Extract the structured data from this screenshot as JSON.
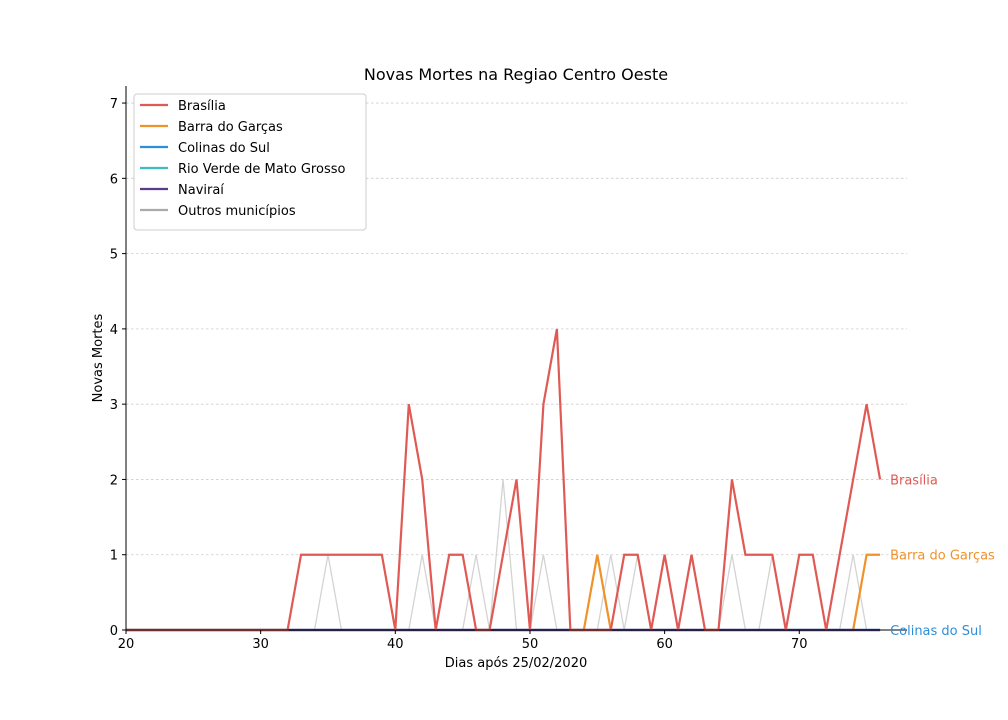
{
  "chart_data": {
    "type": "line",
    "title": "Novas Mortes na Regiao Centro Oeste",
    "xlabel": "Dias após 25/02/2020",
    "ylabel": "Novas Mortes",
    "xlim": [
      20,
      78
    ],
    "ylim": [
      0,
      7.2
    ],
    "xticks": [
      20,
      30,
      40,
      50,
      60,
      70
    ],
    "yticks": [
      0,
      1,
      2,
      3,
      4,
      5,
      6,
      7
    ],
    "grid": "horizontal-dotted",
    "legend_position": "top-left",
    "series": [
      {
        "name": "Brasília",
        "color": "#e05a55",
        "end_label": "Brasília",
        "x": [
          20,
          32,
          33,
          34,
          35,
          36,
          37,
          38,
          39,
          40,
          41,
          42,
          43,
          44,
          45,
          46,
          47,
          48,
          49,
          50,
          51,
          52,
          53,
          54,
          55,
          56,
          57,
          58,
          59,
          60,
          61,
          62,
          63,
          64,
          65,
          66,
          67,
          68,
          69,
          70,
          71,
          72,
          73,
          74,
          75,
          76
        ],
        "y": [
          0,
          0,
          1,
          1,
          1,
          1,
          1,
          1,
          1,
          0,
          3,
          2,
          0,
          1,
          1,
          0,
          0,
          1,
          2,
          0,
          3,
          4,
          0,
          0,
          0,
          0,
          1,
          1,
          0,
          1,
          0,
          1,
          0,
          0,
          2,
          1,
          1,
          1,
          0,
          1,
          1,
          0,
          1,
          2,
          3,
          2
        ]
      },
      {
        "name": "Barra do Garças",
        "color": "#f0922b",
        "end_label": "Barra do Garças",
        "x": [
          20,
          54,
          55,
          56,
          74,
          75,
          76
        ],
        "y": [
          0,
          0,
          1,
          0,
          0,
          1,
          1
        ]
      },
      {
        "name": "Colinas do Sul",
        "color": "#2e8fd8",
        "end_label": "Colinas do Sul",
        "x": [
          20,
          76
        ],
        "y": [
          0,
          0
        ]
      },
      {
        "name": "Rio Verde de Mato Grosso",
        "color": "#3cbcc3",
        "end_label": "",
        "x": [
          20,
          76
        ],
        "y": [
          0,
          0
        ]
      },
      {
        "name": "Naviraí",
        "color": "#5b3b8c",
        "end_label": "",
        "x": [
          20,
          76
        ],
        "y": [
          0,
          0
        ]
      },
      {
        "name": "Outros municípios",
        "color": "#aaaaaa",
        "end_label": "",
        "x": [
          20,
          34,
          35,
          36,
          41,
          42,
          43,
          45,
          46,
          47,
          48,
          49,
          50,
          51,
          52,
          55,
          56,
          57,
          58,
          59,
          64,
          65,
          66,
          67,
          68,
          69,
          73,
          74,
          75,
          76
        ],
        "y": [
          0,
          0,
          1,
          0,
          0,
          1,
          0,
          0,
          1,
          0,
          2,
          0,
          0,
          1,
          0,
          0,
          1,
          0,
          1,
          0,
          0,
          1,
          0,
          0,
          1,
          0,
          0,
          1,
          0,
          0
        ]
      }
    ]
  }
}
